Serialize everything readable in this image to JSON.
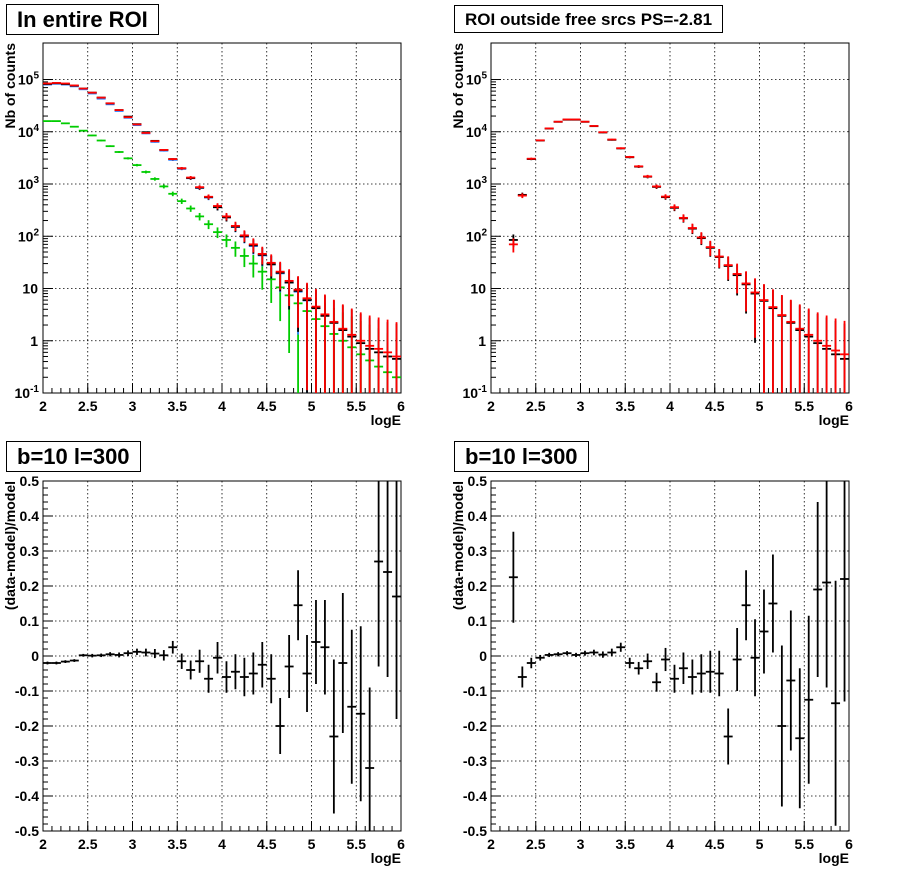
{
  "chart_data": [
    {
      "type": "scatter",
      "title": "In entire ROI",
      "xlabel": "logE",
      "ylabel": "Nb of counts",
      "xlim": [
        2,
        6
      ],
      "ylim": [
        0.1,
        500000
      ],
      "yscale": "log",
      "grid": true,
      "legend": "none",
      "xticks": [
        "2",
        "2.5",
        "3",
        "3.5",
        "4",
        "4.5",
        "5",
        "5.5",
        "6"
      ],
      "yticks": [
        "10^-1",
        "1",
        "10",
        "10^2",
        "10^3",
        "10^4",
        "10^5"
      ],
      "series": [
        {
          "color": "#000000",
          "x": [
            2.05,
            2.15,
            2.25,
            2.35,
            2.45,
            2.55,
            2.65,
            2.75,
            2.85,
            2.95,
            3.05,
            3.15,
            3.25,
            3.35,
            3.45,
            3.55,
            3.65,
            3.75,
            3.85,
            3.95,
            4.05,
            4.15,
            4.25,
            4.35,
            4.45,
            4.55,
            4.65,
            4.75,
            4.85,
            4.95,
            5.05,
            5.15,
            5.25,
            5.35,
            5.45,
            5.55,
            5.65,
            5.75,
            5.85,
            5.95
          ],
          "y": [
            82000,
            85000,
            82000,
            76000,
            67000,
            56000,
            45000,
            35000,
            26000,
            19500,
            14000,
            9800,
            6700,
            4500,
            3000,
            2000,
            1300,
            850,
            560,
            360,
            230,
            152,
            100,
            67,
            44,
            29,
            20,
            13,
            9,
            6,
            4.2,
            3,
            2.2,
            1.6,
            1.2,
            0.9,
            0.7,
            0.6,
            0.5,
            0.45
          ]
        },
        {
          "color": "#ff0000",
          "x": [
            2.05,
            2.15,
            2.25,
            2.35,
            2.45,
            2.55,
            2.65,
            2.75,
            2.85,
            2.95,
            3.05,
            3.15,
            3.25,
            3.35,
            3.45,
            3.55,
            3.65,
            3.75,
            3.85,
            3.95,
            4.05,
            4.15,
            4.25,
            4.35,
            4.45,
            4.55,
            4.65,
            4.75,
            4.85,
            4.95,
            5.05,
            5.15,
            5.25,
            5.35,
            5.45,
            5.55,
            5.65,
            5.75,
            5.85,
            5.95
          ],
          "y": [
            84000,
            86000,
            84000,
            77000,
            67000,
            56000,
            45000,
            35000,
            26000,
            19000,
            13800,
            9500,
            6600,
            4500,
            3000,
            2000,
            1330,
            870,
            570,
            380,
            240,
            158,
            104,
            70,
            46,
            31,
            21,
            14,
            9.5,
            6.5,
            4.5,
            3.2,
            2.3,
            1.7,
            1.3,
            1,
            0.8,
            0.7,
            0.6,
            0.5
          ]
        },
        {
          "color": "#2a7fff",
          "x": [
            2.05,
            2.15,
            2.25,
            2.35,
            2.45,
            2.55,
            2.65,
            2.75,
            2.85,
            2.95,
            3.05,
            3.15,
            3.25,
            3.35,
            3.45,
            3.55,
            3.65,
            3.75,
            3.85,
            3.95,
            4.05,
            4.15,
            4.25,
            4.35,
            4.45,
            4.55,
            4.65,
            4.75,
            4.85,
            4.95
          ],
          "y": [
            80000,
            83000,
            80000,
            74000,
            65000,
            54000,
            43000,
            33500,
            25000,
            18500,
            13400,
            9300,
            6400,
            4350,
            2900,
            1950,
            1290,
            840,
            550,
            360,
            230,
            150,
            98,
            65,
            43,
            29,
            19.5,
            13,
            8.7,
            5.9
          ]
        },
        {
          "color": "#00cc00",
          "x": [
            2.05,
            2.15,
            2.25,
            2.35,
            2.45,
            2.55,
            2.65,
            2.75,
            2.85,
            2.95,
            3.05,
            3.15,
            3.25,
            3.35,
            3.45,
            3.55,
            3.65,
            3.75,
            3.85,
            3.95,
            4.05,
            4.15,
            4.25,
            4.35,
            4.45,
            4.55,
            4.65,
            4.75,
            4.85,
            4.95,
            5.05,
            5.15,
            5.25,
            5.35,
            5.45,
            5.55,
            5.65,
            5.75,
            5.85,
            5.95
          ],
          "y": [
            16000,
            16000,
            14500,
            12500,
            10500,
            8500,
            6800,
            5300,
            4100,
            3100,
            2300,
            1700,
            1250,
            900,
            650,
            470,
            340,
            240,
            170,
            120,
            85,
            60,
            42,
            30,
            21,
            15,
            10.5,
            7.4,
            5.2,
            3.7,
            2.6,
            1.9,
            1.35,
            1,
            0.75,
            0.55,
            0.42,
            0.32,
            0.25,
            0.2
          ]
        }
      ]
    },
    {
      "type": "scatter",
      "title": "ROI outside free srcs PS=-2.81",
      "xlabel": "logE",
      "ylabel": "Nb of counts",
      "xlim": [
        2,
        6
      ],
      "ylim": [
        0.1,
        500000
      ],
      "yscale": "log",
      "grid": true,
      "legend": "none",
      "xticks": [
        "2",
        "2.5",
        "3",
        "3.5",
        "4",
        "4.5",
        "5",
        "5.5",
        "6"
      ],
      "yticks": [
        "10^-1",
        "1",
        "10",
        "10^2",
        "10^3",
        "10^4",
        "10^5"
      ],
      "series": [
        {
          "color": "#000000",
          "x": [
            2.25,
            2.35,
            2.45,
            2.55,
            2.65,
            2.75,
            2.85,
            2.95,
            3.05,
            3.15,
            3.25,
            3.35,
            3.45,
            3.55,
            3.65,
            3.75,
            3.85,
            3.95,
            4.05,
            4.15,
            4.25,
            4.35,
            4.45,
            4.55,
            4.65,
            4.75,
            4.85,
            4.95,
            5.05,
            5.15,
            5.25,
            5.35,
            5.45,
            5.55,
            5.65,
            5.75,
            5.85,
            5.95
          ],
          "y": [
            85,
            620,
            3000,
            6800,
            11500,
            15500,
            17000,
            17000,
            15500,
            12800,
            9700,
            7000,
            4800,
            3250,
            2150,
            1380,
            880,
            560,
            350,
            220,
            140,
            92,
            60,
            40,
            27,
            18,
            12,
            8,
            5.8,
            4.2,
            3,
            2.2,
            1.6,
            1.2,
            0.9,
            0.7,
            0.55,
            0.45
          ]
        },
        {
          "color": "#ff0000",
          "x": [
            2.25,
            2.35,
            2.45,
            2.55,
            2.65,
            2.75,
            2.85,
            2.95,
            3.05,
            3.15,
            3.25,
            3.35,
            3.45,
            3.55,
            3.65,
            3.75,
            3.85,
            3.95,
            4.05,
            4.15,
            4.25,
            4.35,
            4.45,
            4.55,
            4.65,
            4.75,
            4.85,
            4.95,
            5.05,
            5.15,
            5.25,
            5.35,
            5.45,
            5.55,
            5.65,
            5.75,
            5.85,
            5.95
          ],
          "y": [
            70,
            600,
            3050,
            6850,
            11600,
            15600,
            17200,
            17200,
            15600,
            12900,
            9800,
            7100,
            4850,
            3300,
            2180,
            1400,
            900,
            575,
            360,
            225,
            144,
            95,
            62,
            41,
            28,
            19,
            12.5,
            8.4,
            6,
            4.4,
            3.1,
            2.3,
            1.7,
            1.3,
            1,
            0.8,
            0.65,
            0.55
          ]
        }
      ]
    },
    {
      "type": "scatter",
      "title": "b=10 l=300",
      "xlabel": "logE",
      "ylabel": "(data-model)/model",
      "xlim": [
        2,
        6
      ],
      "ylim": [
        -0.5,
        0.5
      ],
      "grid": true,
      "legend": "none",
      "xticks": [
        "2",
        "2.5",
        "3",
        "3.5",
        "4",
        "4.5",
        "5",
        "5.5",
        "6"
      ],
      "yticks": [
        "-0.5",
        "-0.4",
        "-0.3",
        "-0.2",
        "-0.1",
        "0",
        "0.1",
        "0.2",
        "0.3",
        "0.4",
        "0.5"
      ],
      "series": [
        {
          "color": "#000000",
          "x": [
            2.05,
            2.15,
            2.25,
            2.35,
            2.45,
            2.55,
            2.65,
            2.75,
            2.85,
            2.95,
            3.05,
            3.15,
            3.25,
            3.35,
            3.45,
            3.55,
            3.65,
            3.75,
            3.85,
            3.95,
            4.05,
            4.15,
            4.25,
            4.35,
            4.45,
            4.55,
            4.65,
            4.75,
            4.85,
            4.95,
            5.05,
            5.15,
            5.25,
            5.35,
            5.45,
            5.55,
            5.65,
            5.75,
            5.85,
            5.95
          ],
          "y": [
            -0.02,
            -0.02,
            -0.016,
            -0.013,
            0.002,
            0.001,
            0.002,
            0.005,
            0.003,
            0.008,
            0.012,
            0.01,
            0.007,
            0.002,
            0.025,
            -0.015,
            -0.04,
            -0.015,
            -0.065,
            -0.005,
            -0.06,
            -0.045,
            -0.06,
            -0.05,
            -0.025,
            -0.065,
            -0.2,
            -0.03,
            0.145,
            -0.05,
            0.04,
            0.025,
            -0.23,
            -0.02,
            -0.145,
            -0.165,
            -0.32,
            0.27,
            0.24,
            0.17
          ],
          "yerr": [
            0.004,
            0.004,
            0.004,
            0.004,
            0.004,
            0.005,
            0.005,
            0.006,
            0.007,
            0.008,
            0.009,
            0.011,
            0.013,
            0.015,
            0.018,
            0.022,
            0.027,
            0.033,
            0.04,
            0.045,
            0.045,
            0.05,
            0.055,
            0.06,
            0.065,
            0.07,
            0.08,
            0.09,
            0.1,
            0.11,
            0.12,
            0.135,
            0.22,
            0.2,
            0.22,
            0.25,
            0.23,
            0.3,
            0.3,
            0.35
          ]
        }
      ]
    },
    {
      "type": "scatter",
      "title": "b=10 l=300",
      "xlabel": "logE",
      "ylabel": "(data-model)/model",
      "xlim": [
        2,
        6
      ],
      "ylim": [
        -0.5,
        0.5
      ],
      "grid": true,
      "legend": "none",
      "xticks": [
        "2",
        "2.5",
        "3",
        "3.5",
        "4",
        "4.5",
        "5",
        "5.5",
        "6"
      ],
      "yticks": [
        "-0.5",
        "-0.4",
        "-0.3",
        "-0.2",
        "-0.1",
        "0",
        "0.1",
        "0.2",
        "0.3",
        "0.4",
        "0.5"
      ],
      "series": [
        {
          "color": "#000000",
          "x": [
            2.25,
            2.35,
            2.45,
            2.55,
            2.65,
            2.75,
            2.85,
            2.95,
            3.05,
            3.15,
            3.25,
            3.35,
            3.45,
            3.55,
            3.65,
            3.75,
            3.85,
            3.95,
            4.05,
            4.15,
            4.25,
            4.35,
            4.45,
            4.55,
            4.65,
            4.75,
            4.85,
            4.95,
            5.05,
            5.15,
            5.25,
            5.35,
            5.45,
            5.55,
            5.65,
            5.75,
            5.85,
            5.95
          ],
          "y": [
            0.225,
            -0.06,
            -0.02,
            -0.005,
            0.003,
            0.005,
            0.008,
            0.003,
            0.008,
            0.01,
            0.004,
            0.01,
            0.025,
            -0.02,
            -0.035,
            -0.015,
            -0.075,
            -0.01,
            -0.065,
            -0.035,
            -0.06,
            -0.05,
            -0.045,
            -0.05,
            -0.23,
            -0.01,
            0.145,
            -0.005,
            0.07,
            0.15,
            -0.2,
            -0.07,
            -0.235,
            -0.125,
            0.19,
            0.21,
            -0.135,
            0.22
          ],
          "yerr": [
            0.13,
            0.03,
            0.015,
            0.008,
            0.006,
            0.006,
            0.006,
            0.006,
            0.007,
            0.008,
            0.009,
            0.011,
            0.013,
            0.015,
            0.018,
            0.022,
            0.027,
            0.033,
            0.04,
            0.045,
            0.05,
            0.055,
            0.06,
            0.065,
            0.08,
            0.09,
            0.1,
            0.11,
            0.12,
            0.14,
            0.23,
            0.2,
            0.2,
            0.24,
            0.25,
            0.3,
            0.35,
            0.35
          ]
        }
      ]
    }
  ]
}
